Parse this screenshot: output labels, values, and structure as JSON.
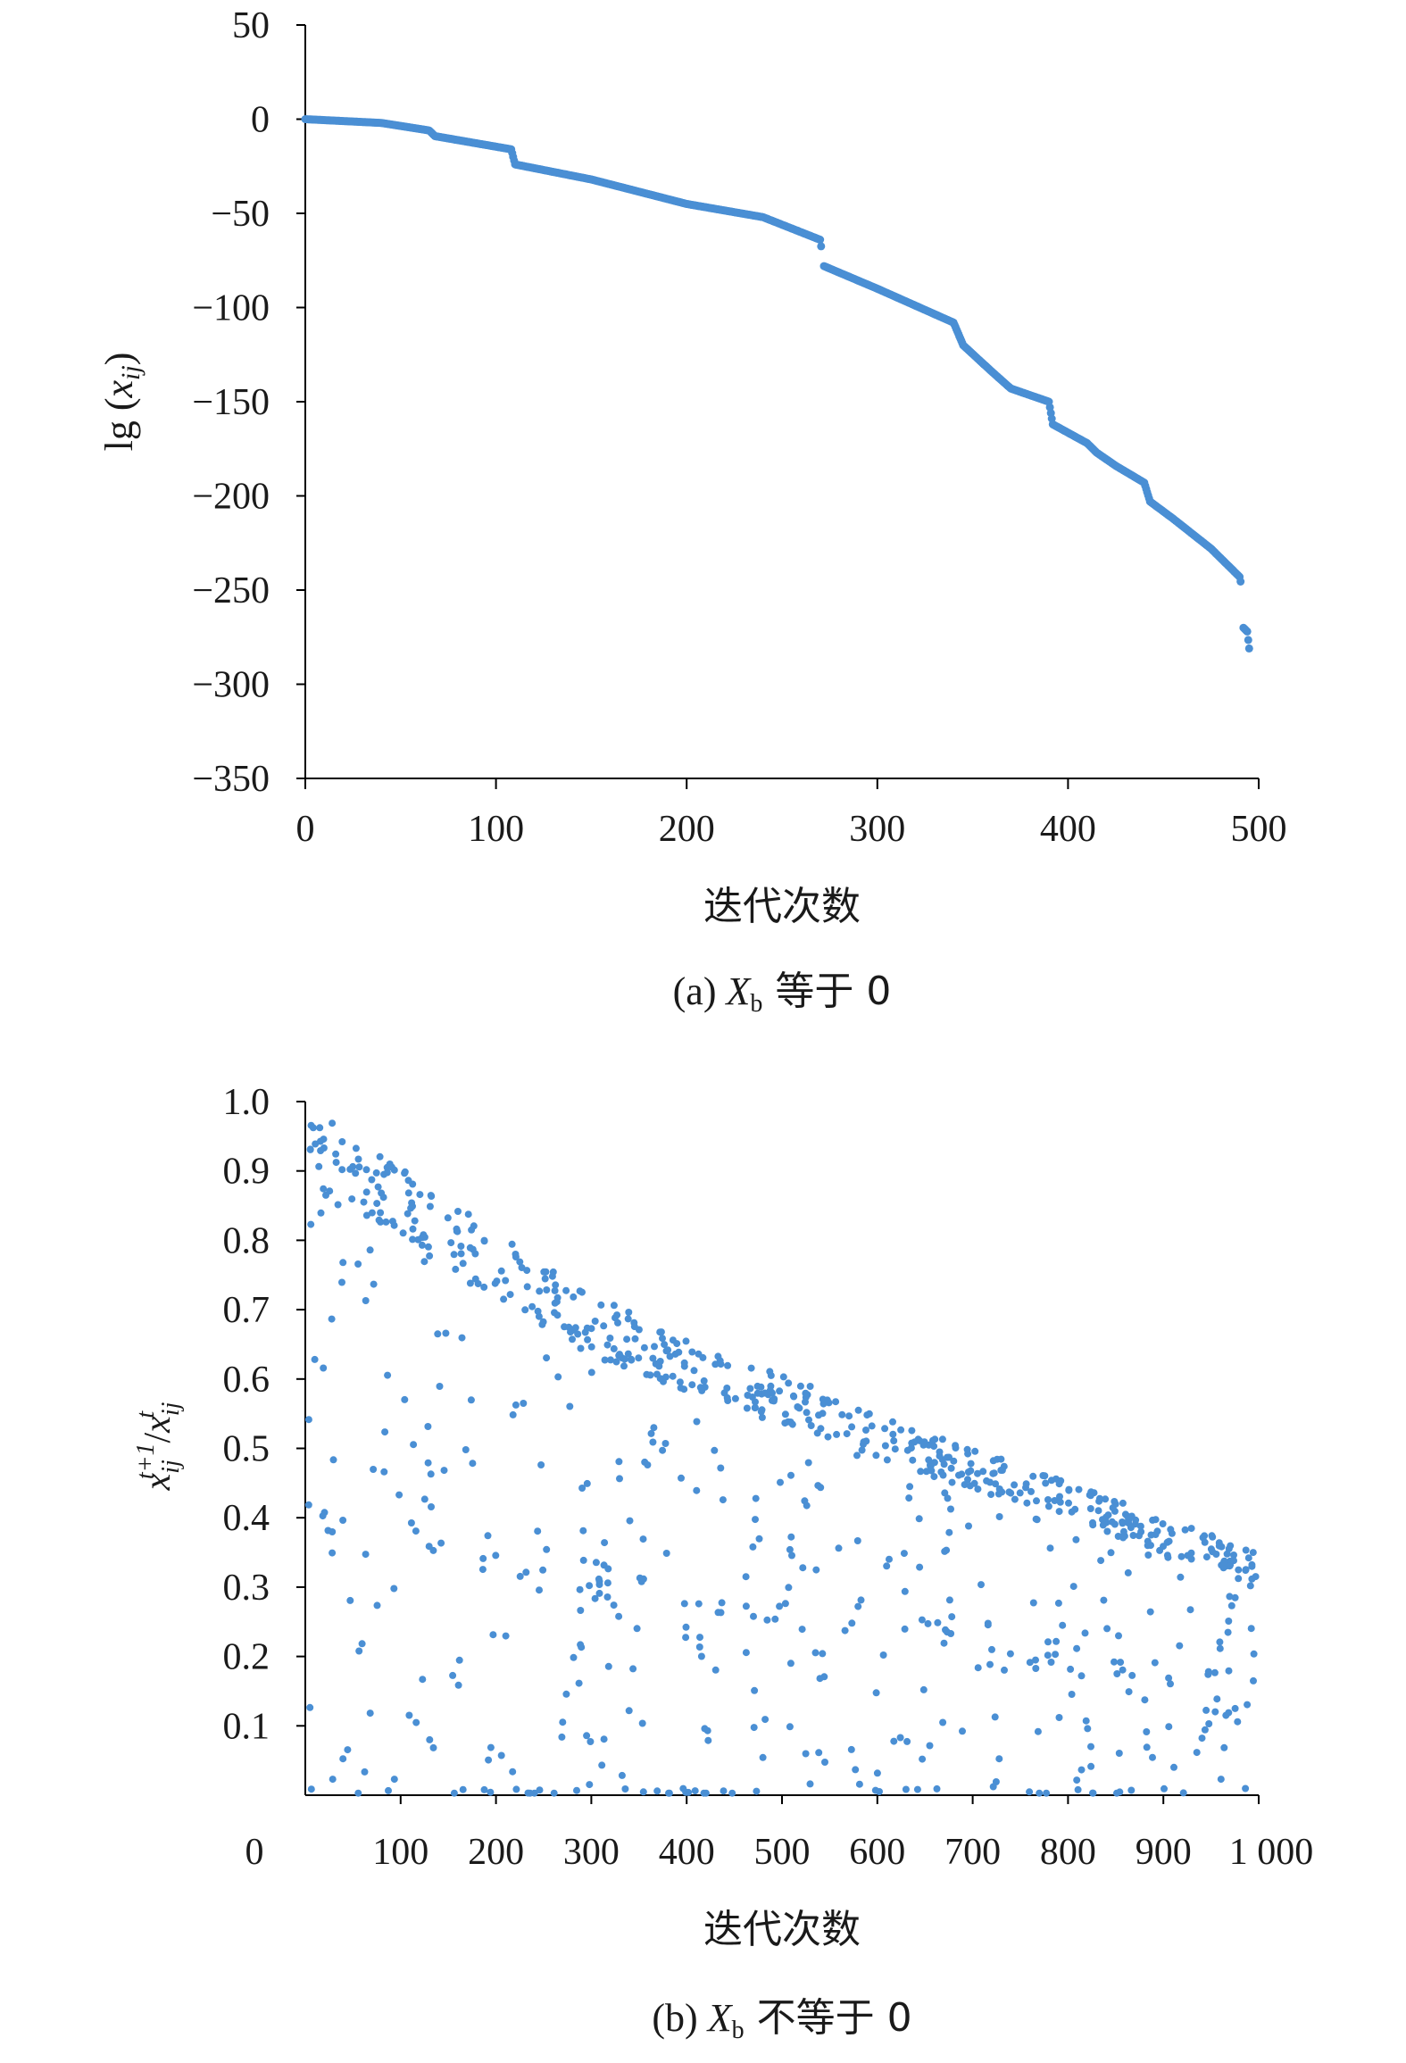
{
  "chart_data": [
    {
      "type": "scatter",
      "caption_prefix": "(a) ",
      "caption_var": "X",
      "caption_sub": "b",
      "caption_suffix": " 等于 0",
      "xlabel": "迭代次数",
      "ylabel_main": "lg (",
      "ylabel_var": "x",
      "ylabel_sub": "ij",
      "ylabel_close": ")",
      "xlim": [
        0,
        500
      ],
      "ylim": [
        -350,
        50
      ],
      "x_ticks": [
        0,
        100,
        200,
        300,
        400,
        500
      ],
      "x_tick_labels": [
        "0",
        "100",
        "200",
        "300",
        "400",
        "500"
      ],
      "y_ticks": [
        50,
        0,
        -50,
        -100,
        -150,
        -200,
        -250,
        -300,
        -350
      ],
      "y_tick_labels": [
        "50",
        "0",
        "−50",
        "−100",
        "−150",
        "−200",
        "−250",
        "−300",
        "−350"
      ],
      "curve": [
        [
          0,
          0
        ],
        [
          40,
          -2
        ],
        [
          65,
          -6
        ],
        [
          68,
          -9
        ],
        [
          108,
          -16
        ],
        [
          110,
          -24
        ],
        [
          150,
          -32
        ],
        [
          200,
          -45
        ],
        [
          240,
          -52
        ],
        [
          270,
          -64
        ],
        [
          272,
          -78
        ],
        [
          300,
          -90
        ],
        [
          340,
          -108
        ],
        [
          345,
          -120
        ],
        [
          360,
          -134
        ],
        [
          370,
          -143
        ],
        [
          390,
          -150
        ],
        [
          392,
          -162
        ],
        [
          410,
          -172
        ],
        [
          415,
          -177
        ],
        [
          425,
          -184
        ],
        [
          440,
          -193
        ],
        [
          443,
          -203
        ],
        [
          455,
          -212
        ],
        [
          475,
          -228
        ],
        [
          490,
          -243
        ],
        [
          491,
          -248
        ],
        [
          492,
          -270
        ],
        [
          494,
          -272
        ],
        [
          495,
          -281
        ]
      ]
    },
    {
      "type": "scatter",
      "caption_prefix": "(b) ",
      "caption_var": "X",
      "caption_sub": "b",
      "caption_suffix": " 不等于 0",
      "xlabel": "迭代次数",
      "ylabel_num": "x",
      "ylabel_num_sub": "ij",
      "ylabel_num_sup": "t+1",
      "ylabel_slash": "/",
      "ylabel_den": "x",
      "ylabel_den_sub": "ij",
      "ylabel_den_sup": "t",
      "xlim": [
        0,
        1000
      ],
      "ylim": [
        0,
        1.0
      ],
      "x_ticks": [
        0,
        100,
        200,
        300,
        400,
        500,
        600,
        700,
        800,
        900,
        1000
      ],
      "x_tick_labels": [
        "0",
        "100",
        "200",
        "300",
        "400",
        "500",
        "600",
        "700",
        "800",
        "900",
        "1 000"
      ],
      "y_ticks": [
        1.0,
        0.9,
        0.8,
        0.7,
        0.6,
        0.5,
        0.4,
        0.3,
        0.2,
        0.1
      ],
      "y_tick_labels": [
        "1.0",
        "0.9",
        "0.8",
        "0.7",
        "0.6",
        "0.5",
        "0.4",
        "0.3",
        "0.2",
        "0.1"
      ],
      "point_count": 900,
      "upper_envelope": [
        [
          0,
          1.0
        ],
        [
          300,
          0.72
        ],
        [
          600,
          0.55
        ],
        [
          1000,
          0.35
        ]
      ]
    }
  ],
  "colors": {
    "points": "#4a8fd4",
    "axis": "#000000"
  }
}
